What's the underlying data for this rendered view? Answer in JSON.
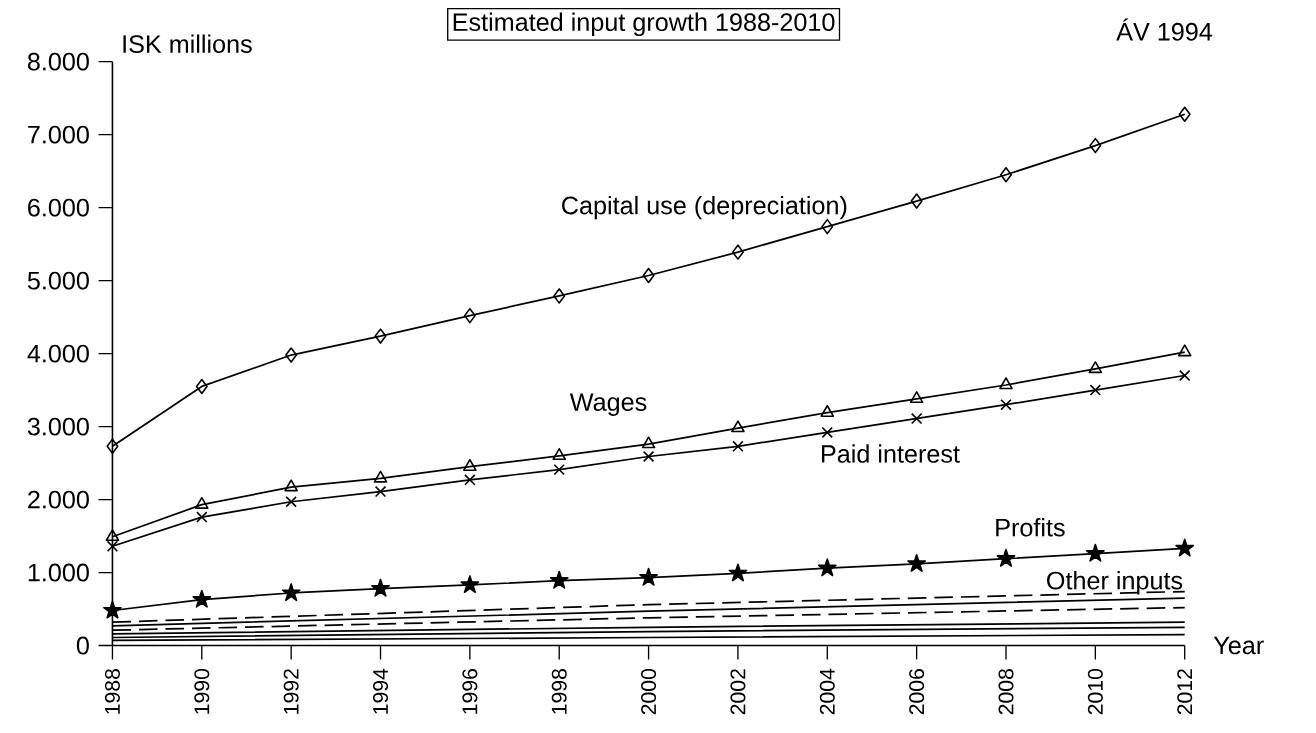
{
  "chart_data": {
    "type": "line",
    "title": "Estimated input growth 1988-2010",
    "ylabel": "ISK millions",
    "xlabel": "Year",
    "annotations": [
      "ÁV 1994"
    ],
    "x": [
      1988,
      1990,
      1992,
      1994,
      1996,
      1998,
      2000,
      2002,
      2004,
      2006,
      2008,
      2010,
      2012
    ],
    "xlim": [
      1988,
      2012
    ],
    "xticks": [
      1988,
      1990,
      1992,
      1994,
      1996,
      1998,
      2000,
      2002,
      2004,
      2006,
      2008,
      2010,
      2012
    ],
    "ylim": [
      0,
      8000
    ],
    "yticks": [
      {
        "value": 0,
        "label": "0"
      },
      {
        "value": 1000,
        "label": "1.000"
      },
      {
        "value": 2000,
        "label": "2.000"
      },
      {
        "value": 3000,
        "label": "3.000"
      },
      {
        "value": 4000,
        "label": "4.000"
      },
      {
        "value": 5000,
        "label": "5.000"
      },
      {
        "value": 6000,
        "label": "6.000"
      },
      {
        "value": 7000,
        "label": "7.000"
      },
      {
        "value": 8000,
        "label": "8.000"
      }
    ],
    "grid": false,
    "legend": false,
    "series": [
      {
        "name": "Capital use (depreciation)",
        "color": "#000000",
        "marker": "diamond",
        "values": [
          2730,
          3550,
          3980,
          4240,
          4520,
          4790,
          5070,
          5390,
          5740,
          6090,
          6450,
          6850,
          7280
        ]
      },
      {
        "name": "Wages",
        "color": "#000000",
        "marker": "triangle",
        "values": [
          1490,
          1930,
          2170,
          2290,
          2450,
          2600,
          2760,
          2980,
          3190,
          3380,
          3570,
          3790,
          4020
        ]
      },
      {
        "name": "Paid interest",
        "color": "#000000",
        "marker": "cross",
        "values": [
          1360,
          1760,
          1970,
          2110,
          2270,
          2410,
          2590,
          2730,
          2920,
          3110,
          3300,
          3500,
          3700
        ]
      },
      {
        "name": "Profits",
        "color": "#000000",
        "marker": "star",
        "values": [
          480,
          630,
          720,
          780,
          830,
          890,
          930,
          990,
          1060,
          1120,
          1190,
          1260,
          1330
        ]
      },
      {
        "name": "Other inputs",
        "color": "#000000",
        "marker": "none",
        "line_style": "dashed",
        "x": [
          1988,
          2000,
          2012
        ],
        "values": [
          320,
          560,
          740
        ]
      },
      {
        "color": "#000000",
        "marker": "none",
        "x": [
          1988,
          2000,
          2012
        ],
        "values": [
          270,
          470,
          650
        ]
      },
      {
        "color": "#000000",
        "marker": "none",
        "line_style": "dashed",
        "x": [
          1988,
          2000,
          2012
        ],
        "values": [
          210,
          380,
          520
        ]
      },
      {
        "color": "#000000",
        "marker": "none",
        "x": [
          1988,
          2000,
          2012
        ],
        "values": [
          160,
          250,
          320
        ]
      },
      {
        "color": "#000000",
        "marker": "none",
        "x": [
          1988,
          2000,
          2012
        ],
        "values": [
          110,
          190,
          250
        ]
      },
      {
        "color": "#000000",
        "marker": "none",
        "x": [
          1988,
          2000,
          2012
        ],
        "values": [
          70,
          110,
          150
        ]
      }
    ]
  }
}
